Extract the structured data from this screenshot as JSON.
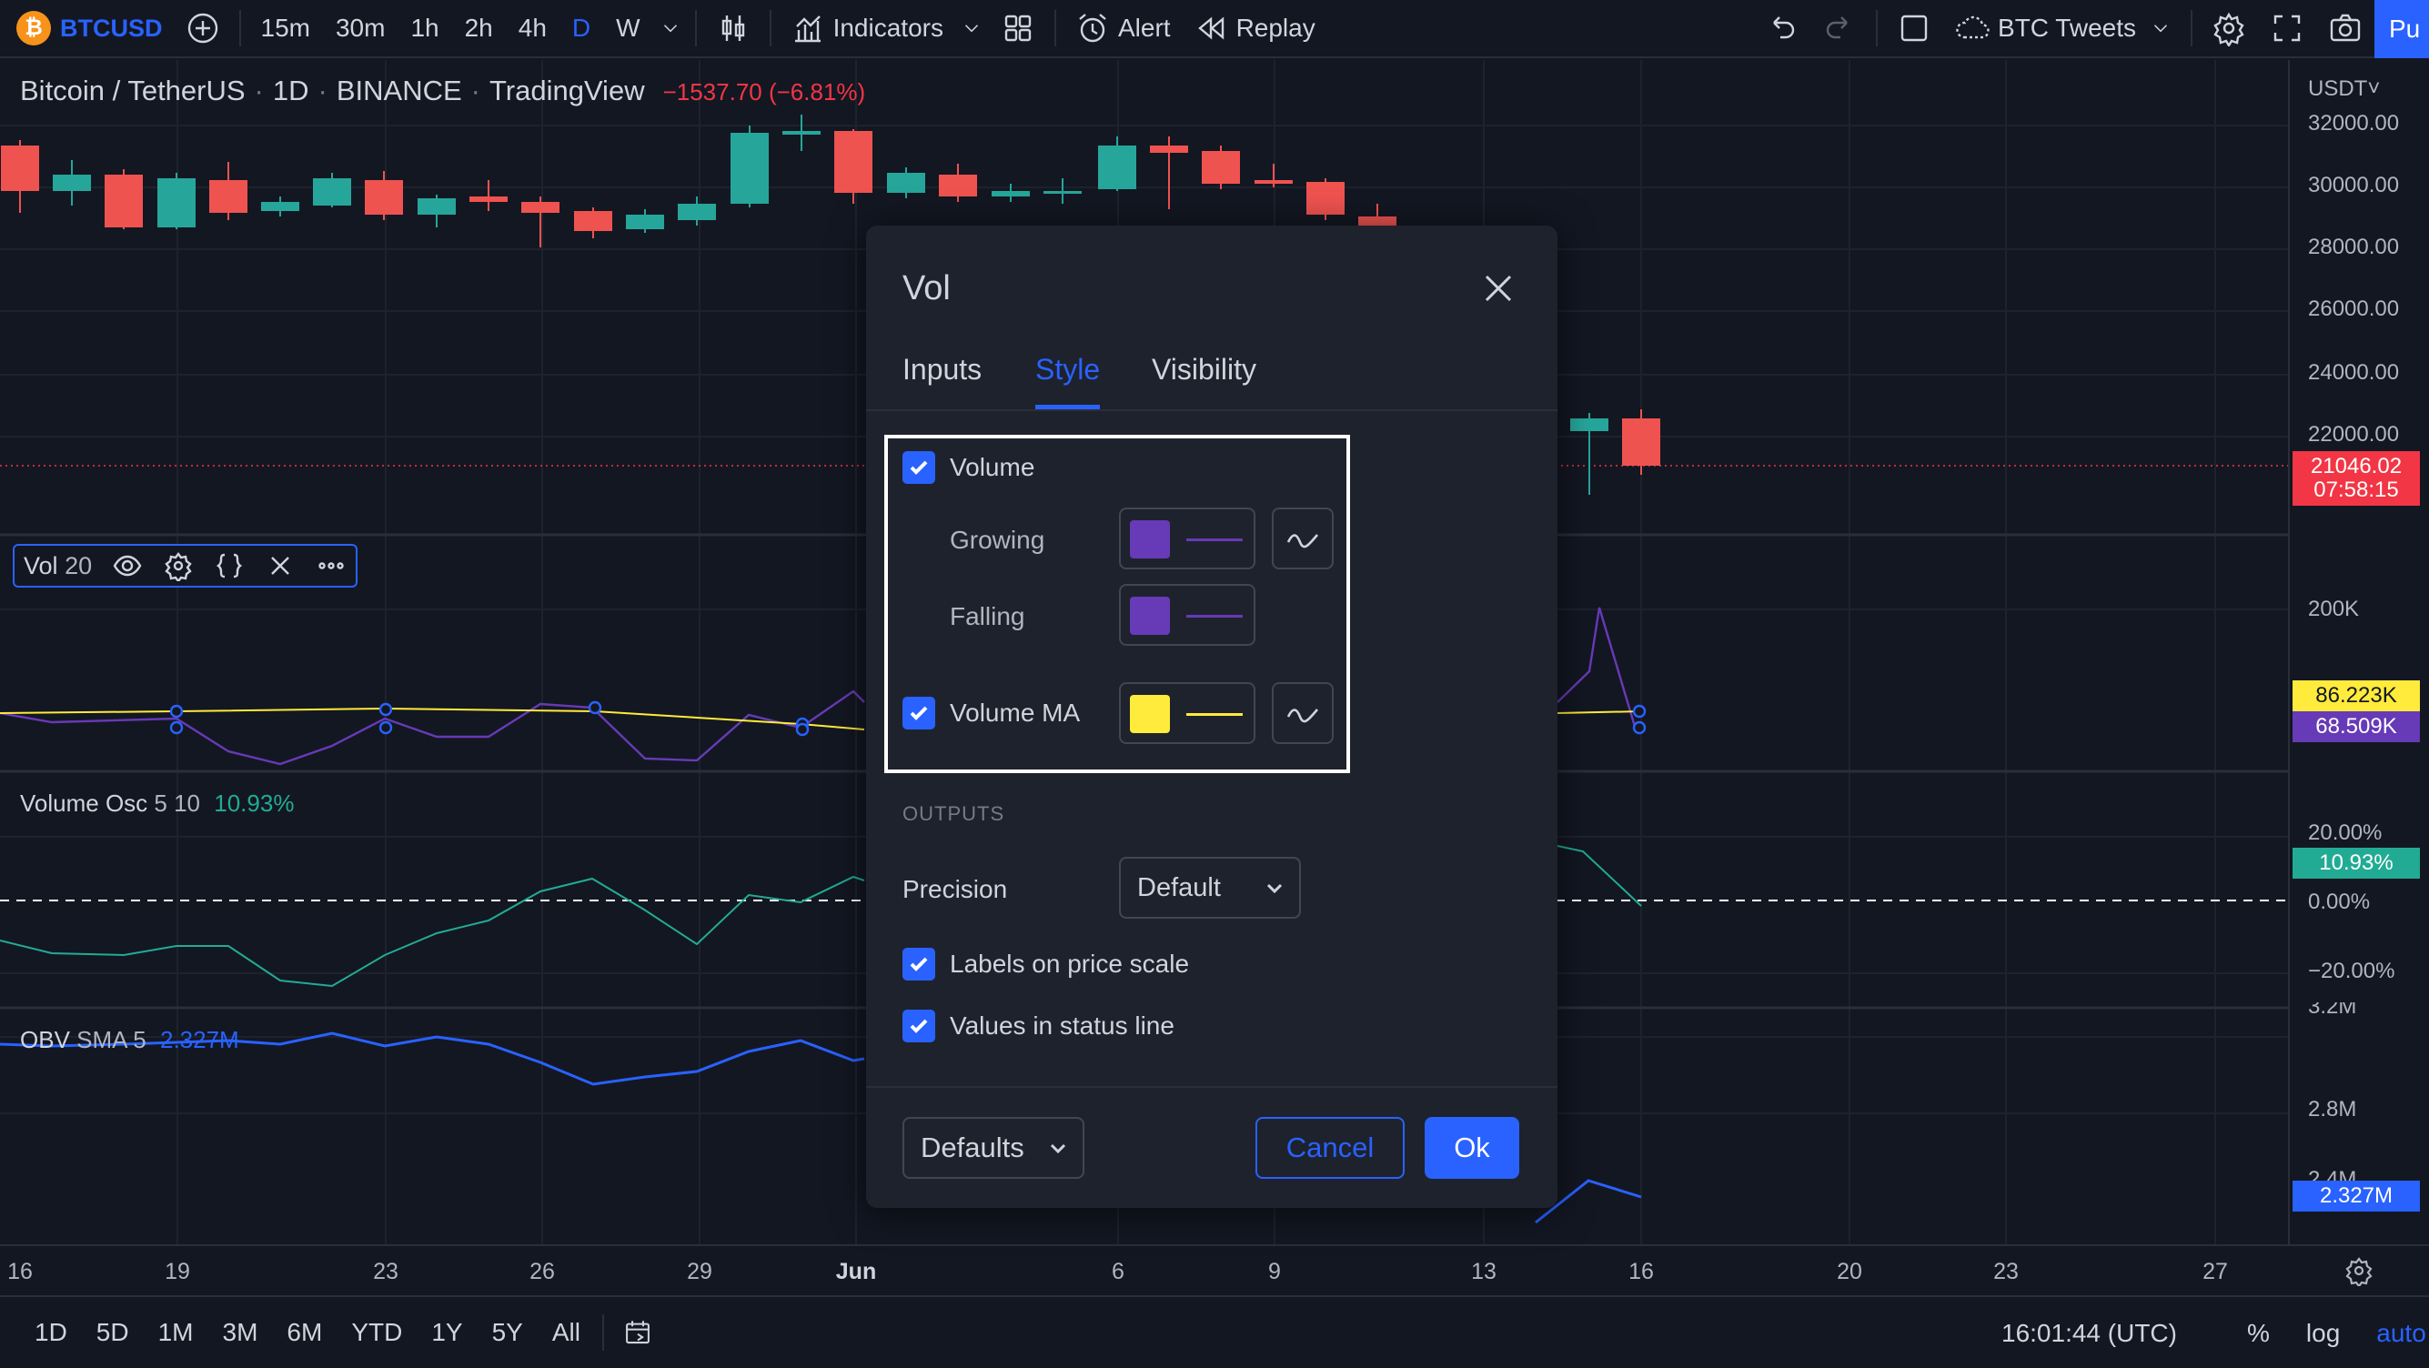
{
  "toolbar": {
    "symbol": "BTCUSD",
    "symbol_logo": "₿",
    "timeframes": [
      "15m",
      "30m",
      "1h",
      "2h",
      "4h",
      "D",
      "W"
    ],
    "active_timeframe": "D",
    "indicators_label": "Indicators",
    "alert_label": "Alert",
    "replay_label": "Replay",
    "layout_name": "BTC Tweets",
    "publish_label": "Pu"
  },
  "legend": {
    "pair": "Bitcoin / TetherUS",
    "interval": "1D",
    "exchange": "BINANCE",
    "source": "TradingView",
    "change": "−1537.70 (−6.81%)"
  },
  "indicators": {
    "vol": {
      "name": "Vol",
      "param": "20"
    },
    "volume_osc": {
      "name": "Volume Osc",
      "params": "5 10",
      "value": "10.93%"
    },
    "obv": {
      "name": "OBV",
      "params": "SMA 5",
      "value": "2.327M"
    }
  },
  "price_scale": {
    "currency": "USDT",
    "ticks": [
      "32000.00",
      "30000.00",
      "28000.00",
      "26000.00",
      "24000.00",
      "22000.00"
    ],
    "last_price": "21046.02",
    "countdown": "07:58:15",
    "vol_ticks": [
      "200K"
    ],
    "vol_ma_badge": "86.223K",
    "vol_badge": "68.509K",
    "osc_ticks": [
      "20.00%",
      "0.00%",
      "−20.00%"
    ],
    "osc_badge": "10.93%",
    "obv_ticks": [
      "3.2M",
      "2.8M",
      "2.4M"
    ],
    "obv_badge": "2.327M"
  },
  "time_axis": {
    "labels": [
      {
        "text": "16",
        "bold": false
      },
      {
        "text": "19",
        "bold": false
      },
      {
        "text": "23",
        "bold": false
      },
      {
        "text": "26",
        "bold": false
      },
      {
        "text": "29",
        "bold": false
      },
      {
        "text": "Jun",
        "bold": true
      },
      {
        "text": "6",
        "bold": false
      },
      {
        "text": "9",
        "bold": false
      },
      {
        "text": "13",
        "bold": false
      },
      {
        "text": "16",
        "bold": false
      },
      {
        "text": "20",
        "bold": false
      },
      {
        "text": "23",
        "bold": false
      },
      {
        "text": "27",
        "bold": false
      }
    ]
  },
  "bottom_bar": {
    "ranges": [
      "1D",
      "5D",
      "1M",
      "3M",
      "6M",
      "YTD",
      "1Y",
      "5Y",
      "All"
    ],
    "clock": "16:01:44 (UTC)",
    "percent": "%",
    "log": "log",
    "auto": "auto"
  },
  "dialog": {
    "title": "Vol",
    "tabs": [
      "Inputs",
      "Style",
      "Visibility"
    ],
    "active_tab": "Style",
    "volume_label": "Volume",
    "growing_label": "Growing",
    "falling_label": "Falling",
    "volume_ma_label": "Volume MA",
    "outputs_heading": "OUTPUTS",
    "precision_label": "Precision",
    "precision_value": "Default",
    "labels_on_price_scale": "Labels on price scale",
    "values_in_status_line": "Values in status line",
    "defaults_label": "Defaults",
    "cancel_label": "Cancel",
    "ok_label": "Ok",
    "colors": {
      "growing": "#673ab7",
      "falling": "#673ab7",
      "volume_ma": "#ffeb3b"
    }
  },
  "colors": {
    "up": "#26a69a",
    "down": "#ef5350",
    "accent": "#2962ff",
    "background": "#131722",
    "panel": "#1e222d"
  }
}
